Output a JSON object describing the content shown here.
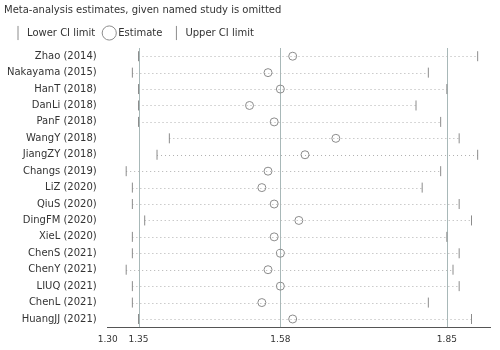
{
  "chart_data": {
    "type": "scatter",
    "title": "Meta-analysis estimates, given named study is omitted",
    "categories": [
      "Zhao (2014)",
      "Nakayama (2015)",
      "HanT (2018)",
      "DanLi (2018)",
      "PanF (2018)",
      "WangY (2018)",
      "JiangZY (2018)",
      "Changs (2019)",
      "LiZ (2020)",
      "QiuS (2020)",
      "DingFM (2020)",
      "XieL (2020)",
      "ChenS (2021)",
      "ChenY (2021)",
      "LIUQ (2021)",
      "ChenL (2021)",
      "HuangJJ (2021)"
    ],
    "series": [
      {
        "name": "Lower CI limit",
        "color": "#8c8c8c",
        "marker": "line",
        "values": [
          1.35,
          1.34,
          1.35,
          1.35,
          1.35,
          1.4,
          1.38,
          1.33,
          1.34,
          1.34,
          1.36,
          1.34,
          1.34,
          1.33,
          1.34,
          1.34,
          1.35
        ]
      },
      {
        "name": "Estimate",
        "color": "#8c8c8c",
        "marker": "circle",
        "values": [
          1.6,
          1.56,
          1.58,
          1.53,
          1.57,
          1.67,
          1.62,
          1.56,
          1.55,
          1.57,
          1.61,
          1.57,
          1.58,
          1.56,
          1.58,
          1.55,
          1.6
        ]
      },
      {
        "name": "Upper CI limit",
        "color": "#8c8c8c",
        "marker": "line",
        "values": [
          1.9,
          1.82,
          1.85,
          1.8,
          1.84,
          1.87,
          1.9,
          1.84,
          1.81,
          1.87,
          1.89,
          1.85,
          1.87,
          1.86,
          1.87,
          1.82,
          1.89
        ]
      }
    ],
    "xlim": [
      1.3,
      1.92
    ],
    "xticks": [
      {
        "value": 1.3,
        "label": "1.30"
      },
      1.35,
      1.58,
      1.85
    ],
    "reference_lines": [
      1.35,
      1.58,
      1.85
    ],
    "line_style": "dotted",
    "legend": "top"
  }
}
